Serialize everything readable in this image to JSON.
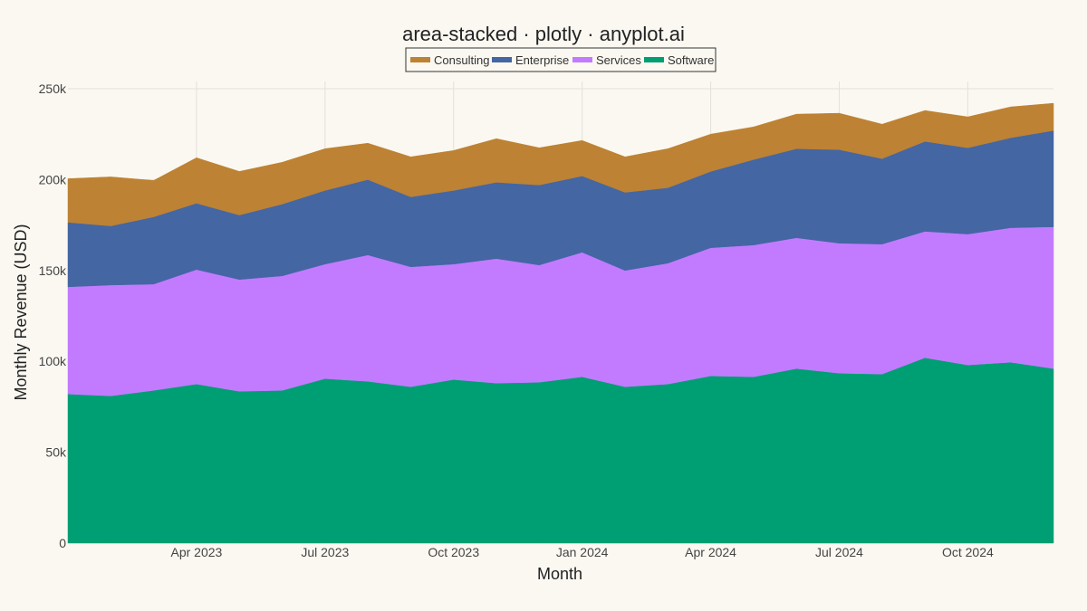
{
  "chart_data": {
    "type": "area",
    "stacked": true,
    "title": "area-stacked · plotly · anyplot.ai",
    "xlabel": "Month",
    "ylabel": "Monthly Revenue (USD)",
    "ylim": [
      0,
      250000
    ],
    "y_ticks": [
      0,
      50000,
      100000,
      150000,
      200000,
      250000
    ],
    "y_tick_labels": [
      "0",
      "50k",
      "100k",
      "150k",
      "200k",
      "250k"
    ],
    "x": [
      "2023-01",
      "2023-02",
      "2023-03",
      "2023-04",
      "2023-05",
      "2023-06",
      "2023-07",
      "2023-08",
      "2023-09",
      "2023-10",
      "2023-11",
      "2023-12",
      "2024-01",
      "2024-02",
      "2024-03",
      "2024-04",
      "2024-05",
      "2024-06",
      "2024-07",
      "2024-08",
      "2024-09",
      "2024-10",
      "2024-11",
      "2024-12"
    ],
    "x_ticks": [
      "2023-04",
      "2023-07",
      "2023-10",
      "2024-01",
      "2024-04",
      "2024-07",
      "2024-10"
    ],
    "x_tick_labels": [
      "Apr 2023",
      "Jul 2023",
      "Oct 2023",
      "Jan 2024",
      "Apr 2024",
      "Jul 2024",
      "Oct 2024"
    ],
    "grid": true,
    "legend_position": "top-center",
    "series": [
      {
        "name": "Software",
        "color": "#009E73",
        "values": [
          82000,
          81000,
          84000,
          87500,
          83500,
          84000,
          90500,
          89000,
          86000,
          90000,
          88000,
          88500,
          91500,
          86000,
          87500,
          92000,
          91500,
          96000,
          93500,
          93000,
          102000,
          98000,
          99500,
          96000
        ]
      },
      {
        "name": "Services",
        "color": "#C27BFF",
        "values": [
          59000,
          61000,
          58500,
          63000,
          61500,
          63000,
          63000,
          69500,
          66000,
          63500,
          68500,
          64500,
          68500,
          64000,
          66500,
          70500,
          72500,
          72000,
          71500,
          71500,
          69500,
          72000,
          74000,
          78000
        ]
      },
      {
        "name": "Enterprise",
        "color": "#4466A3",
        "values": [
          35500,
          32500,
          37000,
          36500,
          35500,
          39500,
          40500,
          41500,
          38500,
          40500,
          42000,
          44000,
          42000,
          43000,
          41500,
          42000,
          47000,
          49000,
          51500,
          47000,
          49500,
          47500,
          49500,
          53000
        ]
      },
      {
        "name": "Consulting",
        "color": "#BD8233",
        "values": [
          24000,
          27000,
          20000,
          25000,
          24000,
          23000,
          23000,
          20000,
          22000,
          22000,
          24000,
          20500,
          19500,
          19500,
          21500,
          20500,
          18000,
          19000,
          20000,
          19000,
          17000,
          17000,
          17000,
          15000
        ]
      }
    ],
    "legend_order": [
      "Consulting",
      "Enterprise",
      "Services",
      "Software"
    ]
  }
}
